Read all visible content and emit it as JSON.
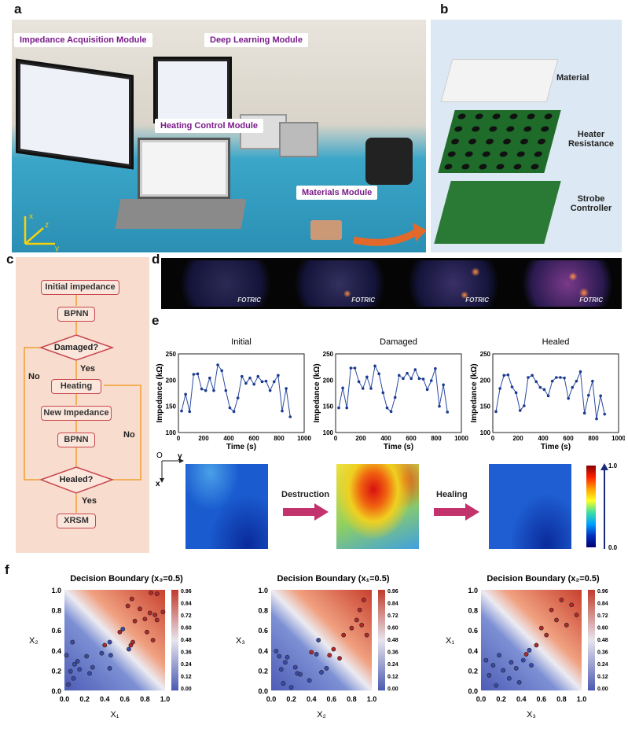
{
  "panels": {
    "a": "a",
    "b": "b",
    "c": "c",
    "d": "d",
    "e": "e",
    "f": "f"
  },
  "photo": {
    "tags": [
      "Impedance Acquisition Module",
      "Deep Learning Module",
      "Heating Control Module",
      "Materials Module"
    ],
    "axes": {
      "x": "x",
      "y": "y",
      "z": "z"
    }
  },
  "exploded": {
    "labels": [
      "Material",
      "Heater Resistance",
      "Strobe Controller"
    ]
  },
  "flowchart": {
    "initial": "Initial impedance",
    "bpnn1": "BPNN",
    "damaged": "Damaged?",
    "yes1": "Yes",
    "no1": "No",
    "heating": "Heating",
    "new_imp": "New Impedance",
    "bpnn2": "BPNN",
    "no2": "No",
    "healed": "Healed?",
    "yes2": "Yes",
    "xrsm": "XRSM"
  },
  "thermal": {
    "brand": "FOTRIC"
  },
  "maps": {
    "axis_o": "O",
    "axis_x": "x",
    "axis_y": "y",
    "destruction": "Destruction",
    "healing": "Healing",
    "scale_max": "1.0",
    "scale_min": "0.0"
  },
  "chart_data": [
    {
      "type": "line",
      "title": "Initial",
      "xlabel": "Time (s)",
      "ylabel": "Impedance (kΩ)",
      "xlim": [
        0,
        1000
      ],
      "ylim": [
        100,
        250
      ],
      "xticks": [
        "0",
        "200",
        "400",
        "600",
        "800",
        "1000"
      ],
      "yticks": [
        "100",
        "150",
        "200",
        "250"
      ],
      "y": [
        141,
        173,
        140,
        211,
        212,
        183,
        180,
        204,
        180,
        229,
        218,
        180,
        147,
        140,
        166,
        207,
        194,
        204,
        192,
        207,
        197,
        198,
        180,
        197,
        209,
        141,
        184,
        130
      ]
    },
    {
      "type": "line",
      "title": "Damaged",
      "xlabel": "Time (s)",
      "ylabel": "Impedance (kΩ)",
      "xlim": [
        0,
        1000
      ],
      "ylim": [
        100,
        250
      ],
      "xticks": [
        "0",
        "200",
        "400",
        "600",
        "800",
        "1000"
      ],
      "yticks": [
        "100",
        "150",
        "200",
        "250"
      ],
      "y": [
        147,
        185,
        147,
        223,
        223,
        197,
        184,
        206,
        184,
        227,
        212,
        176,
        147,
        140,
        167,
        209,
        203,
        213,
        203,
        220,
        203,
        202,
        182,
        199,
        222,
        150,
        191,
        139
      ]
    },
    {
      "type": "line",
      "title": "Healed",
      "xlabel": "Time (s)",
      "ylabel": "Impedance (kΩ)",
      "xlim": [
        0,
        1000
      ],
      "ylim": [
        100,
        250
      ],
      "xticks": [
        "0",
        "200",
        "400",
        "600",
        "800",
        "1000"
      ],
      "yticks": [
        "100",
        "150",
        "200",
        "250"
      ],
      "y": [
        140,
        184,
        209,
        210,
        187,
        176,
        142,
        151,
        205,
        209,
        197,
        186,
        182,
        170,
        198,
        205,
        205,
        204,
        165,
        186,
        198,
        216,
        137,
        171,
        198,
        126,
        170,
        135
      ]
    },
    {
      "type": "scatter",
      "title": "Decision Boundary (x₃=0.5)",
      "xlabel": "X₁",
      "ylabel": "X₂",
      "xlim": [
        0,
        1
      ],
      "ylim": [
        0,
        1
      ],
      "ticks": [
        "0.0",
        "0.2",
        "0.4",
        "0.6",
        "0.8",
        "1.0"
      ],
      "colorbar": [
        "0.96",
        "0.84",
        "0.72",
        "0.60",
        "0.48",
        "0.36",
        "0.24",
        "0.12",
        "0.00"
      ],
      "points": [
        [
          0.02,
          0.35,
          0
        ],
        [
          0.08,
          0.48,
          0
        ],
        [
          0.1,
          0.26,
          0
        ],
        [
          0.13,
          0.29,
          0
        ],
        [
          0.15,
          0.21,
          0
        ],
        [
          0.06,
          0.19,
          0
        ],
        [
          0.04,
          0.06,
          0
        ],
        [
          0.09,
          0.12,
          0
        ],
        [
          0.22,
          0.34,
          0
        ],
        [
          0.25,
          0.17,
          0
        ],
        [
          0.28,
          0.23,
          0
        ],
        [
          0.37,
          0.37,
          0
        ],
        [
          0.45,
          0.22,
          0
        ],
        [
          0.45,
          0.48,
          0
        ],
        [
          0.46,
          0.35,
          0
        ],
        [
          0.58,
          0.61,
          0
        ],
        [
          0.64,
          0.41,
          0
        ],
        [
          0.4,
          0.45,
          1
        ],
        [
          0.55,
          0.58,
          1
        ],
        [
          0.66,
          0.45,
          1
        ],
        [
          0.68,
          0.48,
          1
        ],
        [
          0.63,
          0.84,
          1
        ],
        [
          0.67,
          0.91,
          1
        ],
        [
          0.7,
          0.69,
          1
        ],
        [
          0.75,
          0.81,
          1
        ],
        [
          0.8,
          0.71,
          1
        ],
        [
          0.82,
          0.58,
          1
        ],
        [
          0.85,
          0.77,
          1
        ],
        [
          0.86,
          0.97,
          1
        ],
        [
          0.88,
          0.5,
          1
        ],
        [
          0.9,
          0.75,
          1
        ],
        [
          0.92,
          0.7,
          1
        ],
        [
          0.92,
          0.96,
          1
        ],
        [
          0.98,
          0.78,
          1
        ]
      ]
    },
    {
      "type": "scatter",
      "title": "Decision Boundary (x₁=0.5)",
      "xlabel": "X₂",
      "ylabel": "X₃",
      "xlim": [
        0,
        1
      ],
      "ylim": [
        0,
        1
      ],
      "ticks": [
        "0.0",
        "0.2",
        "0.4",
        "0.6",
        "0.8",
        "1.0"
      ],
      "colorbar": [
        "0.96",
        "0.84",
        "0.72",
        "0.60",
        "0.48",
        "0.36",
        "0.24",
        "0.12",
        "0.00"
      ],
      "points": [
        [
          0.05,
          0.39,
          0
        ],
        [
          0.08,
          0.34,
          0
        ],
        [
          0.1,
          0.21,
          0
        ],
        [
          0.12,
          0.07,
          0
        ],
        [
          0.14,
          0.28,
          0
        ],
        [
          0.16,
          0.33,
          0
        ],
        [
          0.2,
          0.03,
          0
        ],
        [
          0.24,
          0.23,
          0
        ],
        [
          0.26,
          0.17,
          0
        ],
        [
          0.29,
          0.16,
          0
        ],
        [
          0.38,
          0.1,
          0
        ],
        [
          0.45,
          0.36,
          0
        ],
        [
          0.47,
          0.5,
          0
        ],
        [
          0.5,
          0.18,
          0
        ],
        [
          0.55,
          0.22,
          0
        ],
        [
          0.4,
          0.38,
          1
        ],
        [
          0.58,
          0.35,
          1
        ],
        [
          0.62,
          0.41,
          1
        ],
        [
          0.68,
          0.32,
          1
        ],
        [
          0.72,
          0.55,
          1
        ],
        [
          0.8,
          0.62,
          1
        ],
        [
          0.85,
          0.7,
          1
        ],
        [
          0.88,
          0.8,
          1
        ],
        [
          0.9,
          0.65,
          1
        ],
        [
          0.92,
          0.9,
          1
        ],
        [
          0.95,
          0.55,
          1
        ]
      ]
    },
    {
      "type": "scatter",
      "title": "Decision Boundary (x₂=0.5)",
      "xlabel": "X₃",
      "ylabel": "X₁",
      "xlim": [
        0,
        1
      ],
      "ylim": [
        0,
        1
      ],
      "ticks": [
        "0.0",
        "0.2",
        "0.4",
        "0.6",
        "0.8",
        "1.0"
      ],
      "colorbar": [
        "0.96",
        "0.84",
        "0.72",
        "0.60",
        "0.48",
        "0.36",
        "0.24",
        "0.12",
        "0.00"
      ],
      "points": [
        [
          0.05,
          0.3,
          0
        ],
        [
          0.08,
          0.15,
          0
        ],
        [
          0.12,
          0.25,
          0
        ],
        [
          0.15,
          0.05,
          0
        ],
        [
          0.18,
          0.35,
          0
        ],
        [
          0.22,
          0.2,
          0
        ],
        [
          0.28,
          0.12,
          0
        ],
        [
          0.3,
          0.28,
          0
        ],
        [
          0.35,
          0.22,
          0
        ],
        [
          0.38,
          0.08,
          0
        ],
        [
          0.42,
          0.3,
          0
        ],
        [
          0.48,
          0.4,
          0
        ],
        [
          0.5,
          0.25,
          0
        ],
        [
          0.45,
          0.36,
          1
        ],
        [
          0.55,
          0.45,
          1
        ],
        [
          0.6,
          0.62,
          1
        ],
        [
          0.65,
          0.55,
          1
        ],
        [
          0.7,
          0.8,
          1
        ],
        [
          0.75,
          0.7,
          1
        ],
        [
          0.8,
          0.9,
          1
        ],
        [
          0.85,
          0.65,
          1
        ],
        [
          0.9,
          0.85,
          1
        ],
        [
          0.95,
          0.75,
          1
        ]
      ]
    }
  ]
}
